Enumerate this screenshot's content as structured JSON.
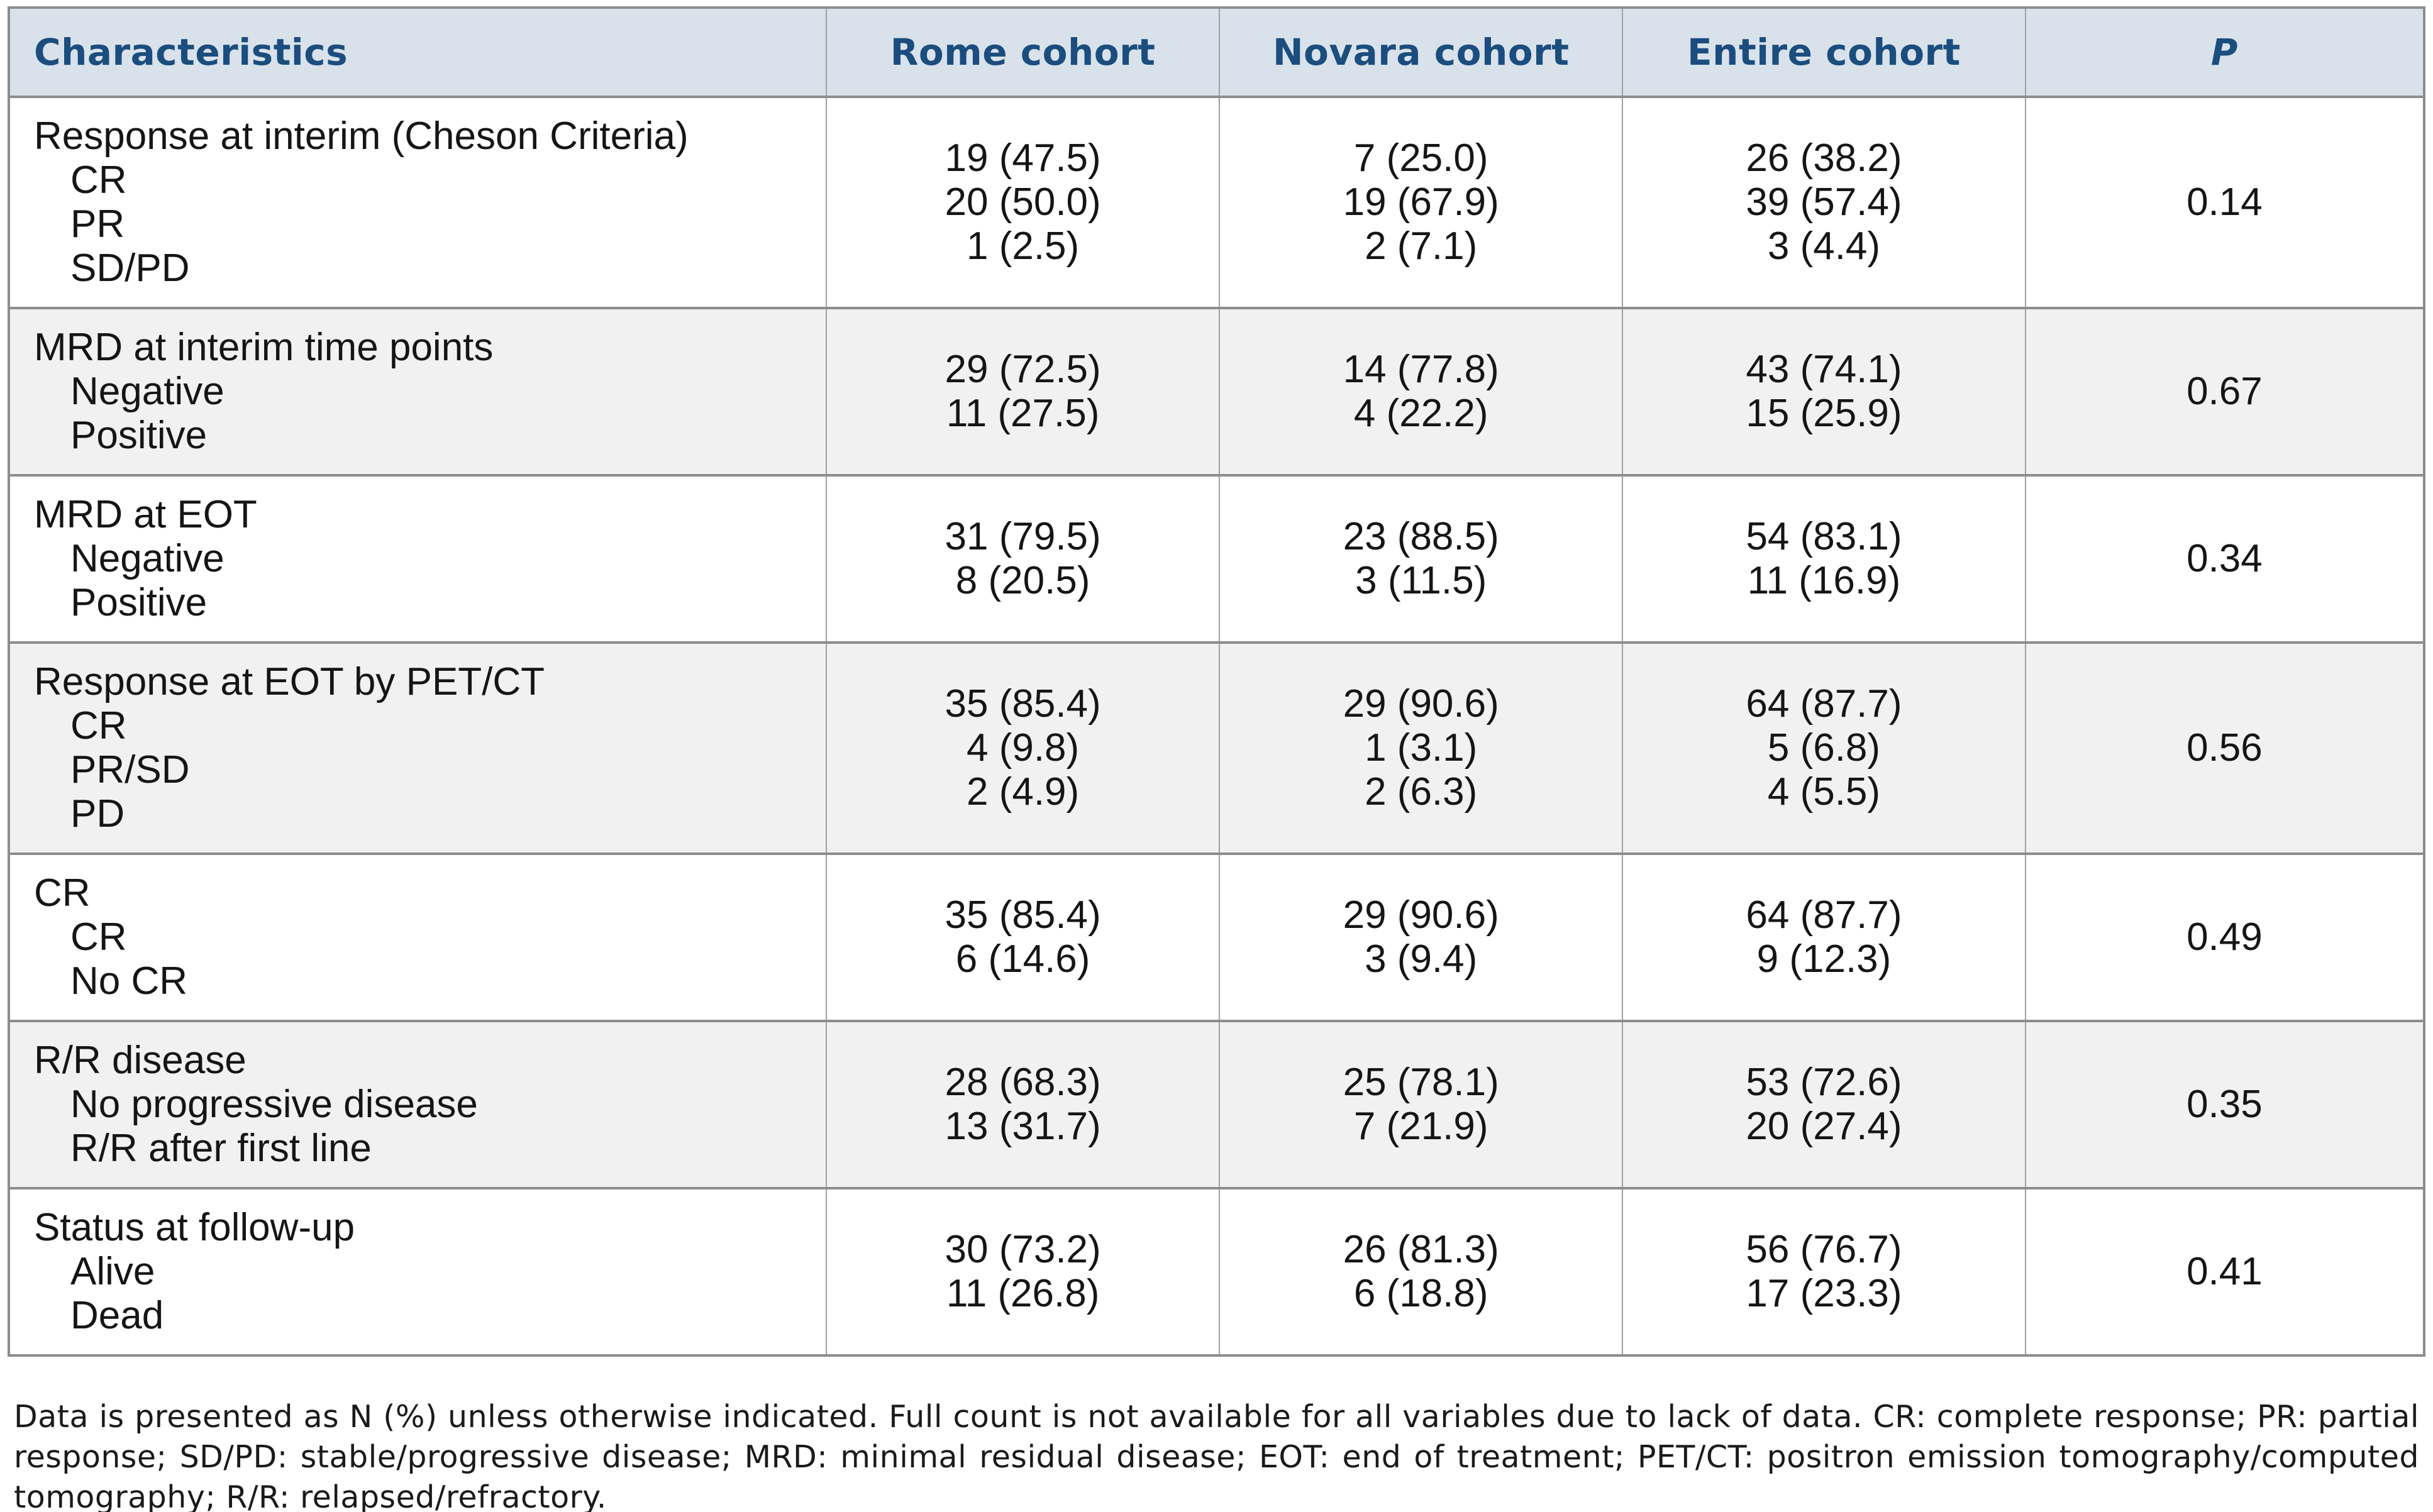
{
  "table": {
    "headers": [
      "Characteristics",
      "Rome cohort",
      "Novara cohort",
      "Entire cohort",
      "P"
    ],
    "blocks": [
      {
        "label": "Response at interim (Cheson Criteria)",
        "items": [
          "CR",
          "PR",
          "SD/PD"
        ],
        "rome": [
          "19 (47.5)",
          "20 (50.0)",
          "1 (2.5)"
        ],
        "novara": [
          "7 (25.0)",
          "19 (67.9)",
          "2 (7.1)"
        ],
        "entire": [
          "26 (38.2)",
          "39 (57.4)",
          "3 (4.4)"
        ],
        "p": "0.14",
        "shaded": false
      },
      {
        "label": "MRD at interim time points",
        "items": [
          "Negative",
          "Positive"
        ],
        "rome": [
          "29 (72.5)",
          "11 (27.5)"
        ],
        "novara": [
          "14 (77.8)",
          "4 (22.2)"
        ],
        "entire": [
          "43 (74.1)",
          "15 (25.9)"
        ],
        "p": "0.67",
        "shaded": true
      },
      {
        "label": "MRD at EOT",
        "items": [
          "Negative",
          "Positive"
        ],
        "rome": [
          "31 (79.5)",
          "8 (20.5)"
        ],
        "novara": [
          "23 (88.5)",
          "3 (11.5)"
        ],
        "entire": [
          "54 (83.1)",
          "11 (16.9)"
        ],
        "p": "0.34",
        "shaded": false
      },
      {
        "label": "Response at EOT by PET/CT",
        "items": [
          "CR",
          "PR/SD",
          "PD"
        ],
        "rome": [
          "35 (85.4)",
          "4 (9.8)",
          "2 (4.9)"
        ],
        "novara": [
          "29 (90.6)",
          "1 (3.1)",
          "2 (6.3)"
        ],
        "entire": [
          "64 (87.7)",
          "5 (6.8)",
          "4 (5.5)"
        ],
        "p": "0.56",
        "shaded": true
      },
      {
        "label": "CR",
        "items": [
          "CR",
          "No CR"
        ],
        "rome": [
          "35 (85.4)",
          "6 (14.6)"
        ],
        "novara": [
          "29 (90.6)",
          "3 (9.4)"
        ],
        "entire": [
          "64 (87.7)",
          "9 (12.3)"
        ],
        "p": "0.49",
        "shaded": false
      },
      {
        "label": "R/R disease",
        "items": [
          "No progressive disease",
          "R/R after first line"
        ],
        "rome": [
          "28 (68.3)",
          "13 (31.7)"
        ],
        "novara": [
          "25 (78.1)",
          "7 (21.9)"
        ],
        "entire": [
          "53 (72.6)",
          "20 (27.4)"
        ],
        "p": "0.35",
        "shaded": true
      },
      {
        "label": "Status at follow-up",
        "items": [
          "Alive",
          "Dead"
        ],
        "rome": [
          "30 (73.2)",
          "11 (26.8)"
        ],
        "novara": [
          "26 (81.3)",
          "6 (18.8)"
        ],
        "entire": [
          "56 (76.7)",
          "17 (23.3)"
        ],
        "p": "0.41",
        "shaded": false
      }
    ]
  },
  "footnote": "Data is presented as N (%) unless otherwise indicated. Full count is not available for all variables due to lack of data. CR: complete response; PR: partial response; SD/PD: stable/progressive disease; MRD: minimal residual disease; EOT: end of treatment; PET/CT: positron emission tomography/computed tomography; R/R: relapsed/refractory.",
  "colors": {
    "header_bg": "#d9e2eb",
    "header_text": "#1b4d7e",
    "shaded_row_bg": "#f1f1f1",
    "horizontal_border": "#8d8d8d",
    "vertical_border": "#a0a0a0",
    "body_text": "#151515"
  }
}
